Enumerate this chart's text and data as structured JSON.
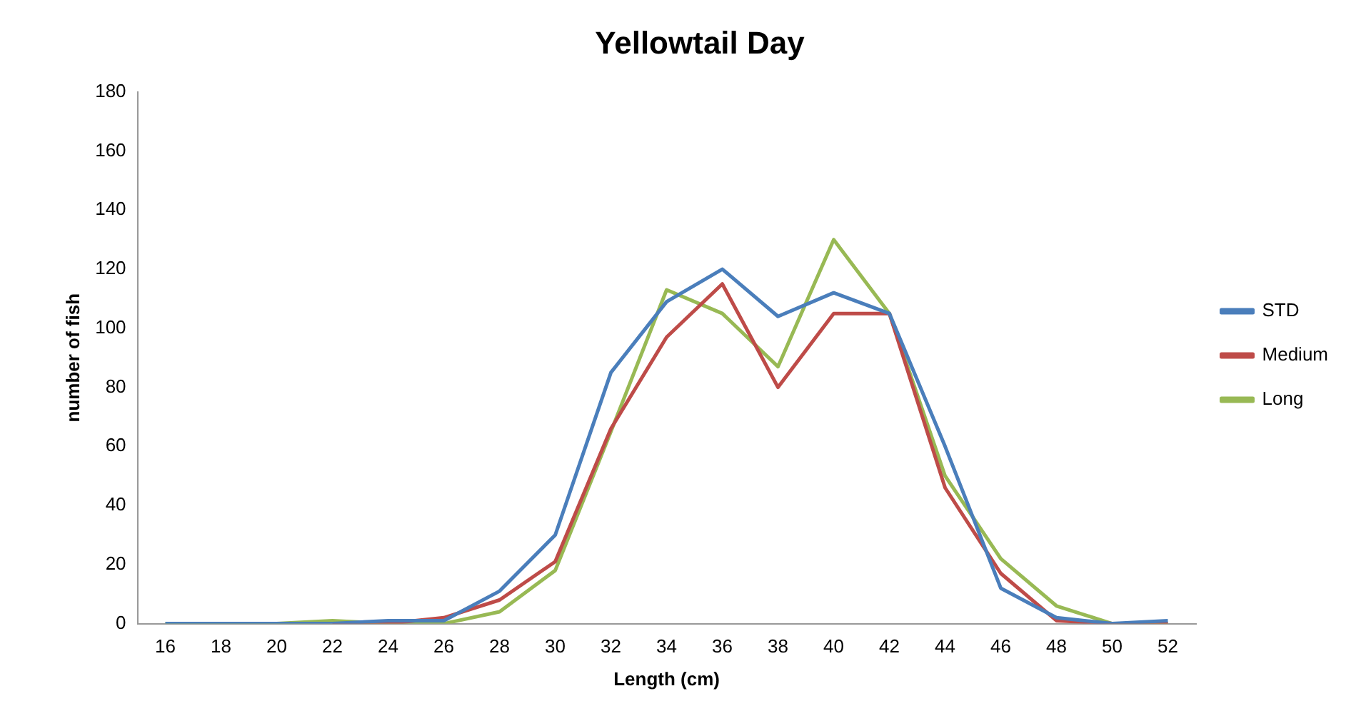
{
  "chart_data": {
    "type": "line",
    "title": "Yellowtail Day",
    "xlabel": "Length (cm)",
    "ylabel": "number of fish",
    "categories": [
      "16",
      "18",
      "20",
      "22",
      "24",
      "26",
      "28",
      "30",
      "32",
      "34",
      "36",
      "38",
      "40",
      "42",
      "44",
      "46",
      "48",
      "50",
      "52"
    ],
    "series": [
      {
        "name": "STD",
        "color": "#4a7ebb",
        "values": [
          0,
          0,
          0,
          0,
          1,
          1,
          11,
          30,
          85,
          109,
          120,
          104,
          112,
          105,
          60,
          12,
          2,
          0,
          1
        ]
      },
      {
        "name": "Medium",
        "color": "#be4b48",
        "values": [
          null,
          null,
          null,
          0,
          0,
          2,
          8,
          21,
          66,
          97,
          115,
          80,
          105,
          105,
          46,
          17,
          1,
          0,
          0
        ]
      },
      {
        "name": "Long",
        "color": "#98b954",
        "values": [
          0,
          0,
          0,
          1,
          0,
          0,
          4,
          18,
          65,
          113,
          105,
          87,
          130,
          105,
          50,
          22,
          6,
          0,
          0
        ]
      }
    ],
    "ylim": [
      0,
      180
    ],
    "yticks": [
      0,
      20,
      40,
      60,
      80,
      100,
      120,
      140,
      160,
      180
    ],
    "grid": false,
    "legend": "right",
    "marker": "none",
    "line_style": "solid"
  }
}
